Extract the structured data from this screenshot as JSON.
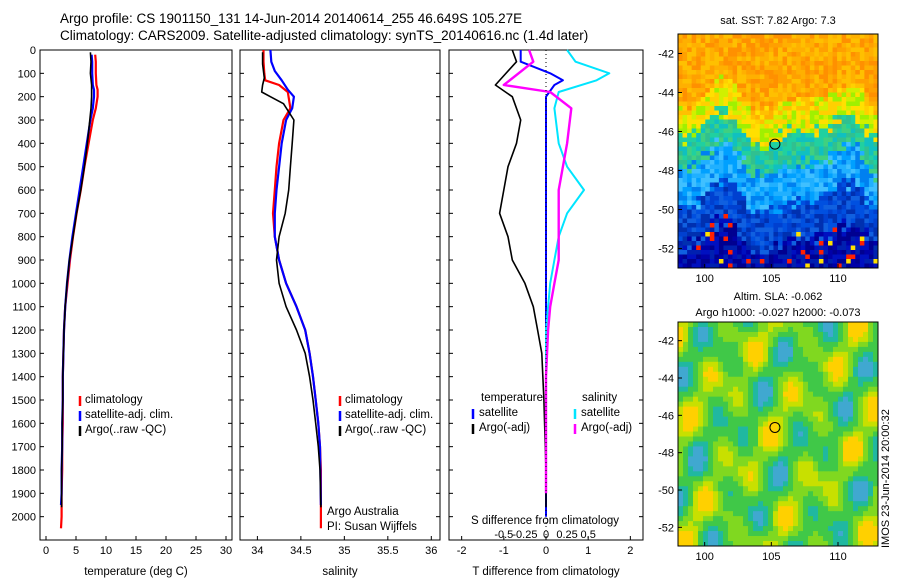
{
  "header": {
    "line1": "Argo profile: CS 1901150_131 14-Jun-2014 20140614_255 46.649S 105.27E",
    "line2": "Climatology: CARS2009. Satellite-adjusted climatology: synTS_20140616.nc (1.4d later)"
  },
  "colors": {
    "climatology": "#ff0000",
    "satellite": "#0000ff",
    "argo": "#000000",
    "sat_salinity": "#00e5ff",
    "argo_salinity": "#ff00ff"
  },
  "chart_data": [
    {
      "id": "temperature",
      "type": "line",
      "xlabel": "temperature (deg C)",
      "ylabel": "",
      "xlim": [
        -1,
        31
      ],
      "ylim": [
        2100,
        0
      ],
      "xticks": [
        0,
        5,
        10,
        15,
        20,
        25,
        30
      ],
      "yticks": [
        0,
        100,
        200,
        300,
        400,
        500,
        600,
        700,
        800,
        900,
        1000,
        1100,
        1200,
        1300,
        1400,
        1500,
        1600,
        1700,
        1800,
        1900,
        2000
      ],
      "legend": {
        "placement": "lower-center",
        "entries": [
          "climatology",
          "satellite-adj. clim.",
          "Argo(..raw -QC)"
        ]
      },
      "series": [
        {
          "name": "climatology",
          "color": "#ff0000",
          "x": [
            8.2,
            8.3,
            8.3,
            8.4,
            8.6,
            8.6,
            8.3,
            7.8,
            7.1,
            6.4,
            5.8,
            5.1,
            4.5,
            4.0,
            3.6,
            3.2,
            3.0,
            2.9,
            2.8,
            2.8,
            2.8,
            2.7,
            2.7,
            2.6,
            2.6,
            2.5
          ],
          "y": [
            20,
            50,
            100,
            150,
            170,
            200,
            250,
            300,
            400,
            500,
            600,
            700,
            800,
            900,
            1000,
            1100,
            1200,
            1300,
            1400,
            1500,
            1600,
            1700,
            1800,
            1900,
            2000,
            2050
          ]
        },
        {
          "name": "satellite-adj. clim.",
          "color": "#0000ff",
          "x": [
            7.6,
            7.7,
            7.7,
            7.8,
            8.0,
            8.0,
            7.8,
            7.4,
            6.8,
            6.2,
            5.6,
            5.0,
            4.4,
            3.9,
            3.5,
            3.2,
            3.0,
            2.9,
            2.8,
            2.8,
            2.7,
            2.7,
            2.6,
            2.6,
            2.5
          ],
          "y": [
            20,
            50,
            100,
            150,
            170,
            200,
            250,
            300,
            400,
            500,
            600,
            700,
            800,
            900,
            1000,
            1100,
            1200,
            1300,
            1400,
            1500,
            1600,
            1700,
            1800,
            1900,
            1950
          ]
        },
        {
          "name": "Argo(..raw -QC)",
          "color": "#000000",
          "x": [
            7.4,
            7.5,
            7.4,
            7.6,
            7.6,
            7.5,
            7.3,
            6.9,
            6.4,
            5.8,
            5.1,
            4.5,
            3.9,
            3.5,
            3.2,
            3.0,
            2.9,
            2.8,
            2.8,
            2.7,
            2.7,
            2.6,
            2.6,
            2.6
          ],
          "y": [
            10,
            50,
            100,
            150,
            200,
            250,
            300,
            400,
            500,
            600,
            700,
            800,
            900,
            1000,
            1100,
            1200,
            1300,
            1400,
            1500,
            1600,
            1700,
            1800,
            1900,
            1960
          ]
        }
      ]
    },
    {
      "id": "salinity",
      "type": "line",
      "xlabel": "salinity",
      "ylabel": "",
      "xlim": [
        33.8,
        36.1
      ],
      "ylim": [
        2100,
        0
      ],
      "xticks": [
        34,
        34.5,
        35,
        35.5,
        36
      ],
      "legend": {
        "placement": "lower-center",
        "entries": [
          "climatology",
          "satellite-adj. clim.",
          "Argo(..raw -QC)"
        ]
      },
      "annotation": [
        "Argo Australia",
        "PI: Susan Wijffels"
      ],
      "series": [
        {
          "name": "climatology",
          "color": "#ff0000",
          "x": [
            34.07,
            34.07,
            34.08,
            34.09,
            34.25,
            34.35,
            34.38,
            34.3,
            34.25,
            34.22,
            34.2,
            34.18,
            34.2,
            34.25,
            34.33,
            34.45,
            34.55,
            34.6,
            34.64,
            34.67,
            34.7,
            34.72,
            34.73,
            34.73
          ],
          "y": [
            0,
            50,
            100,
            130,
            150,
            180,
            250,
            300,
            400,
            500,
            600,
            700,
            800,
            900,
            1000,
            1100,
            1200,
            1300,
            1400,
            1500,
            1600,
            1700,
            1800,
            2050
          ]
        },
        {
          "name": "satellite-adj. clim.",
          "color": "#0000ff",
          "x": [
            34.15,
            34.16,
            34.2,
            34.28,
            34.35,
            34.42,
            34.4,
            34.33,
            34.28,
            34.25,
            34.22,
            34.2,
            34.2,
            34.25,
            34.33,
            34.45,
            34.55,
            34.6,
            34.64,
            34.67,
            34.7,
            34.72,
            34.73
          ],
          "y": [
            0,
            50,
            90,
            130,
            170,
            200,
            250,
            300,
            400,
            500,
            600,
            700,
            800,
            900,
            1000,
            1100,
            1200,
            1300,
            1400,
            1500,
            1600,
            1700,
            1950
          ]
        },
        {
          "name": "Argo(..raw -QC)",
          "color": "#000000",
          "x": [
            34.06,
            34.06,
            34.08,
            34.06,
            34.05,
            34.15,
            34.3,
            34.42,
            34.4,
            34.38,
            34.36,
            34.32,
            34.25,
            34.22,
            34.25,
            34.33,
            34.45,
            34.55,
            34.6,
            34.64,
            34.67,
            34.7,
            34.72,
            34.73
          ],
          "y": [
            10,
            60,
            120,
            150,
            180,
            200,
            230,
            300,
            400,
            500,
            600,
            700,
            800,
            900,
            1000,
            1100,
            1200,
            1300,
            1400,
            1500,
            1600,
            1700,
            1800,
            1960
          ]
        }
      ]
    },
    {
      "id": "difference",
      "type": "line",
      "xlabel": "T difference from climatology",
      "secondary_xlabel": "S difference from climatology",
      "xlim": [
        -2.3,
        2.3
      ],
      "ylim": [
        2100,
        0
      ],
      "xticks": [
        -2,
        -1,
        0,
        1,
        2
      ],
      "secondary_xticks": [
        "-0.5",
        "-0.25",
        "0",
        "0.25",
        "0.5"
      ],
      "legend": {
        "placement": "lower-center",
        "temperature_title": "temperature",
        "salinity_title": "salinity",
        "temperature_entries": [
          "satellite",
          "Argo(-adj)"
        ],
        "salinity_entries": [
          "satellite",
          "Argo(-adj)"
        ]
      },
      "series": [
        {
          "name": "temperature satellite",
          "color": "#0000ff",
          "x": [
            -0.6,
            -0.6,
            0.1,
            0.4,
            0.2,
            0,
            0,
            0,
            0,
            0,
            0,
            0,
            0,
            0,
            0,
            0,
            0,
            0,
            0,
            0
          ],
          "y": [
            0,
            50,
            100,
            130,
            150,
            200,
            300,
            400,
            500,
            600,
            700,
            800,
            900,
            1000,
            1200,
            1400,
            1600,
            1800,
            1950,
            2000
          ]
        },
        {
          "name": "temperature Argo(-adj)",
          "color": "#000000",
          "x": [
            -0.8,
            -0.7,
            -1.2,
            -0.8,
            -0.6,
            -0.7,
            -0.9,
            -1.0,
            -1.1,
            -0.9,
            -0.8,
            -0.5,
            -0.3,
            -0.2,
            -0.1,
            -0.05,
            0,
            0
          ],
          "y": [
            0,
            50,
            150,
            200,
            300,
            400,
            500,
            600,
            700,
            800,
            900,
            1000,
            1100,
            1200,
            1300,
            1500,
            1800,
            1960
          ]
        },
        {
          "name": "salinity satellite",
          "color": "#00e5ff",
          "x": [
            0.5,
            0.7,
            1.5,
            1.2,
            0.3,
            0.2,
            0.3,
            0.5,
            0.9,
            0.5,
            0.3,
            0.2,
            0.1,
            0.05,
            0,
            0,
            0
          ],
          "y": [
            0,
            50,
            100,
            130,
            180,
            250,
            400,
            500,
            600,
            700,
            800,
            900,
            1000,
            1100,
            1200,
            1500,
            1800
          ]
        },
        {
          "name": "salinity Argo(-adj)",
          "color": "#ff00ff",
          "x": [
            -0.4,
            -0.3,
            -1.0,
            0.1,
            0.6,
            0.5,
            0.4,
            0.3,
            0.3,
            0.3,
            0.3,
            0.2,
            0.1,
            0.05,
            0,
            0,
            0
          ],
          "y": [
            0,
            50,
            150,
            180,
            250,
            400,
            500,
            600,
            700,
            800,
            900,
            1000,
            1100,
            1200,
            1400,
            1700,
            1900
          ]
        }
      ]
    },
    {
      "id": "sst-map",
      "type": "heatmap",
      "title": "sat. SST: 7.82 Argo: 7.3",
      "xlim": [
        98,
        113
      ],
      "ylim": [
        -53,
        -41
      ],
      "xticks": [
        100,
        105,
        110
      ],
      "yticks": [
        -42,
        -44,
        -46,
        -48,
        -50,
        -52
      ],
      "marker": {
        "lon": 105.27,
        "lat": -46.649
      }
    },
    {
      "id": "sla-map",
      "type": "heatmap",
      "title": "Altim. SLA: -0.062",
      "subtitle": "Argo h1000: -0.027 h2000: -0.073",
      "xlim": [
        98,
        113
      ],
      "ylim": [
        -53,
        -41
      ],
      "xticks": [
        100,
        105,
        110
      ],
      "yticks": [
        -42,
        -44,
        -46,
        -48,
        -50,
        -52
      ],
      "marker": {
        "lon": 105.27,
        "lat": -46.649
      }
    }
  ],
  "footer_vertical": "IMOS 23-Jun-2014 20:00:32"
}
